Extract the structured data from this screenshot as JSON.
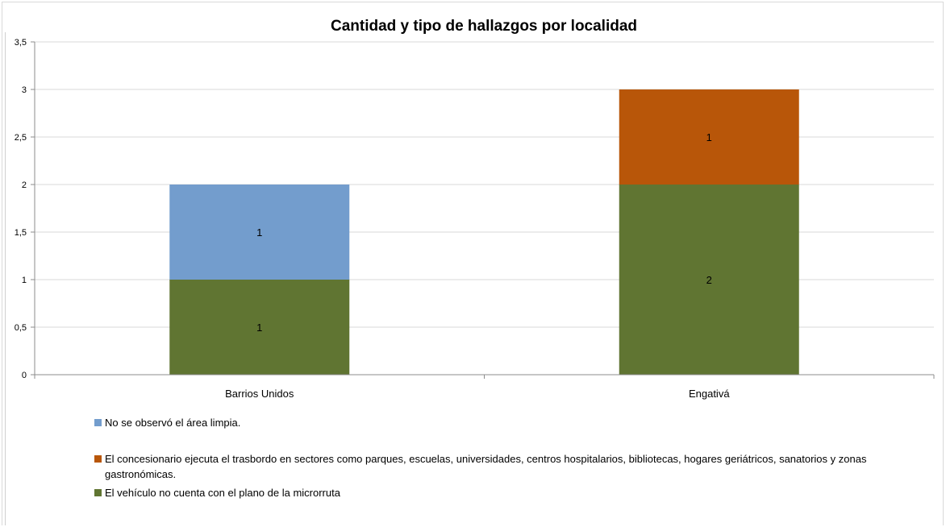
{
  "chart_data": {
    "type": "bar",
    "stacked": true,
    "title": "Cantidad y tipo de hallazgos por localidad",
    "categories": [
      "Barrios Unidos",
      "Engativá"
    ],
    "series": [
      {
        "name": "El vehículo no cuenta con el plano de la microrruta",
        "color": "#607532",
        "values": [
          1,
          2
        ]
      },
      {
        "name": "No se observó el área limpia.",
        "color": "#739dcd",
        "values": [
          1,
          0
        ]
      },
      {
        "name": "El concesionario ejecuta el trasbordo en sectores como parques, escuelas, universidades, centros hospitalarios, bibliotecas, hogares geriátricos, sanatorios y zonas gastronómicas.",
        "color": "#b85609",
        "values": [
          0,
          1
        ]
      }
    ],
    "ylim": [
      0,
      3.5
    ],
    "yticks": [
      "0",
      "0,5",
      "1",
      "1,5",
      "2",
      "2,5",
      "3",
      "3,5"
    ],
    "grid": true,
    "legend_position": "bottom",
    "legend_order": [
      1,
      2,
      0
    ]
  }
}
